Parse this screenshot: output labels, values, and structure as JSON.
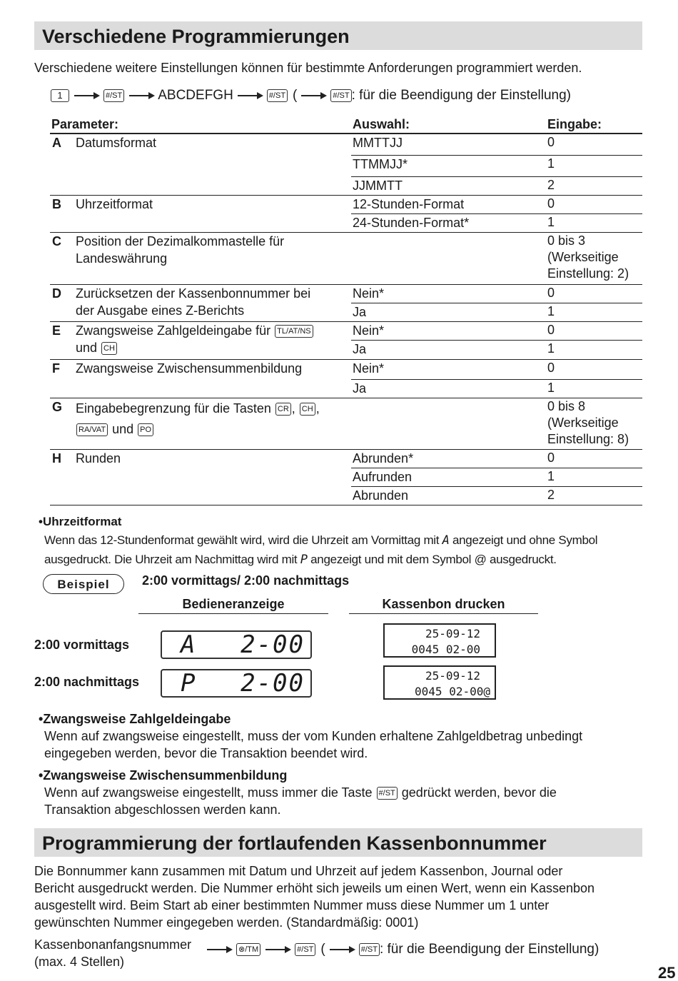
{
  "section1": {
    "title": "Verschiedene Programmierungen",
    "intro": "Verschiedene weitere Einstellungen können für bestimmte Anforderungen programmiert werden.",
    "sequence": {
      "key1": "1",
      "key2": "#/ST",
      "middle": "ABCDEFGH",
      "key3": "#/ST",
      "paren_open": "(",
      "key4": "#/ST",
      "note": ": für die Beendigung der Einstellung)"
    },
    "table": {
      "headers": [
        "Parameter:",
        "Auswahl:",
        "Eingabe:"
      ],
      "groups": [
        {
          "letter": "A",
          "param": [
            {
              "t": "Datumsformat"
            }
          ],
          "options": [
            [
              "MMTTJJ",
              "0"
            ],
            [
              "TTMMJJ*",
              "1"
            ],
            [
              "JJMMTT",
              "2"
            ]
          ]
        },
        {
          "letter": "B",
          "param": [
            {
              "t": "Uhrzeitformat"
            }
          ],
          "options": [
            [
              "12-Stunden-Format",
              "0"
            ],
            [
              "24-Stunden-Format*",
              "1"
            ]
          ]
        },
        {
          "letter": "C",
          "param": [
            {
              "t": "Position der Dezimalkommastelle für"
            },
            {
              "br": true
            },
            {
              "t": "Landeswährung"
            }
          ],
          "options": [
            [
              "",
              "0 bis 3\n(Werkseitige\nEinstellung: 2)"
            ]
          ]
        },
        {
          "letter": "D",
          "param": [
            {
              "t": "Zurücksetzen der Kassenbonnummer bei"
            },
            {
              "br": true
            },
            {
              "t": "der Ausgabe eines Z-Berichts"
            }
          ],
          "options": [
            [
              "Nein*",
              "0"
            ],
            [
              "Ja",
              "1"
            ]
          ]
        },
        {
          "letter": "E",
          "param": [
            {
              "t": "Zwangsweise Zahlgeldeingabe für "
            },
            {
              "key": "TL/AT/NS"
            },
            {
              "br": true
            },
            {
              "t": "und "
            },
            {
              "key": "CH"
            }
          ],
          "options": [
            [
              "Nein*",
              "0"
            ],
            [
              "Ja",
              "1"
            ]
          ]
        },
        {
          "letter": "F",
          "param": [
            {
              "t": "Zwangsweise Zwischensummenbildung"
            }
          ],
          "options": [
            [
              "Nein*",
              "0"
            ],
            [
              "Ja",
              "1"
            ]
          ]
        },
        {
          "letter": "G",
          "param": [
            {
              "t": "Eingabebegrenzung für die Tasten "
            },
            {
              "key": "CR"
            },
            {
              "t": ", "
            },
            {
              "key": "CH"
            },
            {
              "t": ","
            },
            {
              "br": true
            },
            {
              "key": "RA/VAT"
            },
            {
              "t": " und "
            },
            {
              "key": "PO"
            }
          ],
          "options": [
            [
              "",
              "0 bis 8\n(Werkseitige\nEinstellung: 8)"
            ]
          ]
        },
        {
          "letter": "H",
          "param": [
            {
              "t": "Runden"
            }
          ],
          "options": [
            [
              "Abrunden*",
              "0"
            ],
            [
              "Aufrunden",
              "1"
            ],
            [
              "Abrunden",
              "2"
            ]
          ]
        }
      ]
    },
    "uhrzeit": {
      "heading": "•Uhrzeitformat",
      "line1a": "Wenn das 12-Stundenformat gewählt wird, wird die Uhrzeit am Vormittag mit ",
      "sym_a": "A",
      "line1b": " angezeigt und ohne Symbol",
      "line2a": "ausgedruckt. Die Uhrzeit am Nachmittag wird mit ",
      "sym_p": "P",
      "line2b": " angezeigt und mit dem Symbol @ ausgedruckt."
    },
    "example": {
      "badge": "Beispiel",
      "title": "2:00 vormittags/ 2:00 nachmittags",
      "col1": "Bedieneranzeige",
      "col2": "Kassenbon drucken",
      "rows": [
        {
          "label": "2:00 vormittags",
          "lcd_symbol": "A",
          "lcd_value": "2-00",
          "receipt_line1": "25-09-12",
          "receipt_line2": "0045 02-00"
        },
        {
          "label": "2:00 nachmittags",
          "lcd_symbol": "P",
          "lcd_value": "2-00",
          "receipt_line1": "25-09-12",
          "receipt_line2": "0045 02-00@"
        }
      ]
    },
    "zahlgeld": {
      "heading": "•Zwangsweise Zahlgeldeingabe",
      "line1": "Wenn auf zwangsweise eingestellt, muss der vom Kunden erhaltene Zahlgeldbetrag unbedingt",
      "line2": "eingegeben werden, bevor die Transaktion beendet wird."
    },
    "zwischensumme": {
      "heading": "•Zwangsweise Zwischensummenbildung",
      "line1a": "Wenn auf zwangsweise eingestellt, muss immer die Taste ",
      "key": "#/ST",
      "line1b": " gedrückt werden, bevor die",
      "line2": "Transaktion abgeschlossen werden kann."
    }
  },
  "section2": {
    "title": "Programmierung der fortlaufenden Kassenbonnummer",
    "lines": [
      "Die Bonnummer kann zusammen mit Datum und Uhrzeit auf jedem Kassenbon, Journal oder",
      "Bericht ausgedruckt werden.  Die Nummer erhöht sich jeweils um einen Wert, wenn ein Kassenbon",
      "ausgestellt wird. Beim Start ab einer bestimmten Nummer muss diese Nummer um 1 unter",
      "gewünschten Nummer eingegeben werden. (Standardmäßig: 0001)"
    ],
    "sequence": {
      "label1": "Kassenbonanfangsnummer",
      "label2": "(max. 4 Stellen)",
      "key1": "⊗/TM",
      "key2": "#/ST",
      "paren_open": "(",
      "key3": "#/ST",
      "note": ": für die Beendigung der Einstellung)"
    }
  },
  "page_number": "25"
}
